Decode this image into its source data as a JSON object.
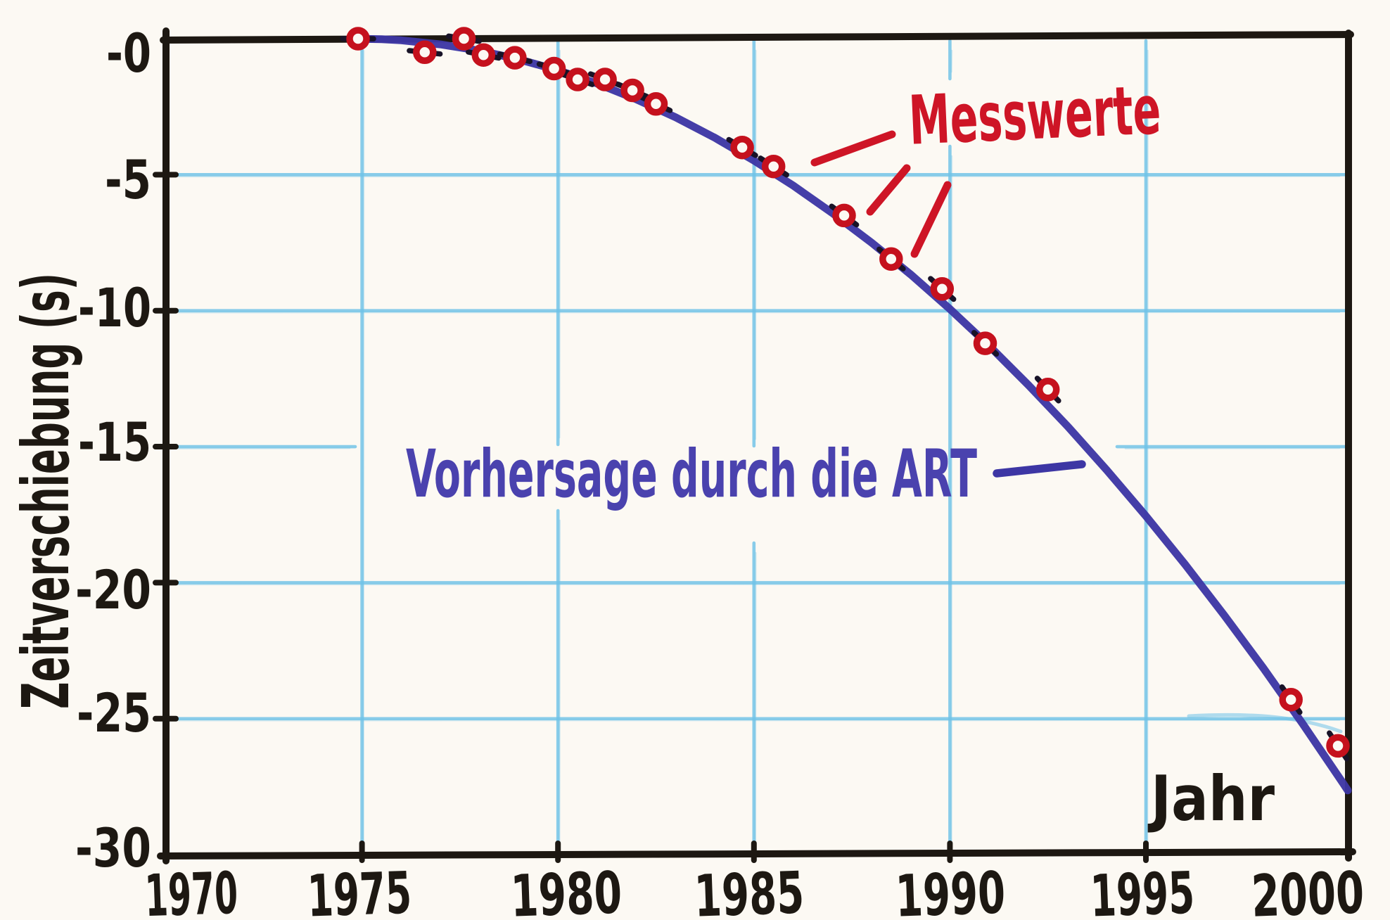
{
  "figure": {
    "paper": "#fcf9f3",
    "ink": "#1d1812",
    "grid_blue": "#6fc3e8",
    "curve_blue": "#3d36a4",
    "label_blue": "#4a42ae",
    "point_red": "#c5111d",
    "label_red": "#ce1526",
    "under_dot_dark": "#181327"
  },
  "chart_data": {
    "type": "scatter",
    "title": "",
    "xlabel": "Jahr",
    "ylabel": "Zeitverschiebung (s)",
    "xlim": [
      1970,
      2000.5
    ],
    "ylim": [
      -30,
      0
    ],
    "x_ticks": [
      "1970",
      "1975",
      "1980",
      "1985",
      "1990",
      "1995",
      "2000"
    ],
    "x_tick_values": [
      1970,
      1975,
      1980,
      1985,
      1990,
      1995,
      2000
    ],
    "y_ticks": [
      "-0",
      "-5",
      "-10",
      "-15",
      "-20",
      "-25",
      "-30"
    ],
    "y_tick_values": [
      0,
      -5,
      -10,
      -15,
      -20,
      -25,
      -30
    ],
    "grid": true,
    "legend_position": "inline-annotations",
    "series": [
      {
        "name": "Messwerte",
        "type": "scatter",
        "marker": "open-circle",
        "color": "#c5111d",
        "points": [
          [
            1974.9,
            0.0
          ],
          [
            1976.6,
            -0.5
          ],
          [
            1977.6,
            0.0
          ],
          [
            1978.1,
            -0.6
          ],
          [
            1978.9,
            -0.7
          ],
          [
            1979.9,
            -1.1
          ],
          [
            1980.5,
            -1.5
          ],
          [
            1981.2,
            -1.5
          ],
          [
            1981.9,
            -1.9
          ],
          [
            1982.5,
            -2.4
          ],
          [
            1984.7,
            -4.0
          ],
          [
            1985.5,
            -4.7
          ],
          [
            1987.3,
            -6.5
          ],
          [
            1988.5,
            -8.1
          ],
          [
            1989.8,
            -9.2
          ],
          [
            1990.9,
            -11.2
          ],
          [
            1992.5,
            -12.9
          ],
          [
            1998.7,
            -24.3
          ],
          [
            1999.9,
            -26.0
          ]
        ]
      },
      {
        "name": "Vorhersage durch die ART",
        "type": "line",
        "color": "#3d36a4",
        "points": [
          [
            1974.8,
            0.0
          ],
          [
            1975.5,
            -0.02
          ],
          [
            1976,
            -0.06
          ],
          [
            1977,
            -0.21
          ],
          [
            1978,
            -0.44
          ],
          [
            1979,
            -0.76
          ],
          [
            1980,
            -1.16
          ],
          [
            1981,
            -1.65
          ],
          [
            1982,
            -2.23
          ],
          [
            1983,
            -2.89
          ],
          [
            1984,
            -3.64
          ],
          [
            1985,
            -4.48
          ],
          [
            1986,
            -5.4
          ],
          [
            1987,
            -6.41
          ],
          [
            1988,
            -7.5
          ],
          [
            1989,
            -8.67
          ],
          [
            1990,
            -9.94
          ],
          [
            1991,
            -11.29
          ],
          [
            1992,
            -12.73
          ],
          [
            1993,
            -14.25
          ],
          [
            1994,
            -15.86
          ],
          [
            1995,
            -17.55
          ],
          [
            1996,
            -19.33
          ],
          [
            1997,
            -21.2
          ],
          [
            1998,
            -23.15
          ],
          [
            1999,
            -25.19
          ],
          [
            2000,
            -27.31
          ],
          [
            2000.15,
            -27.64
          ]
        ]
      }
    ],
    "annotations": {
      "measured_leader_dash_count": 3,
      "prediction_leader_dash_count": 1
    }
  }
}
